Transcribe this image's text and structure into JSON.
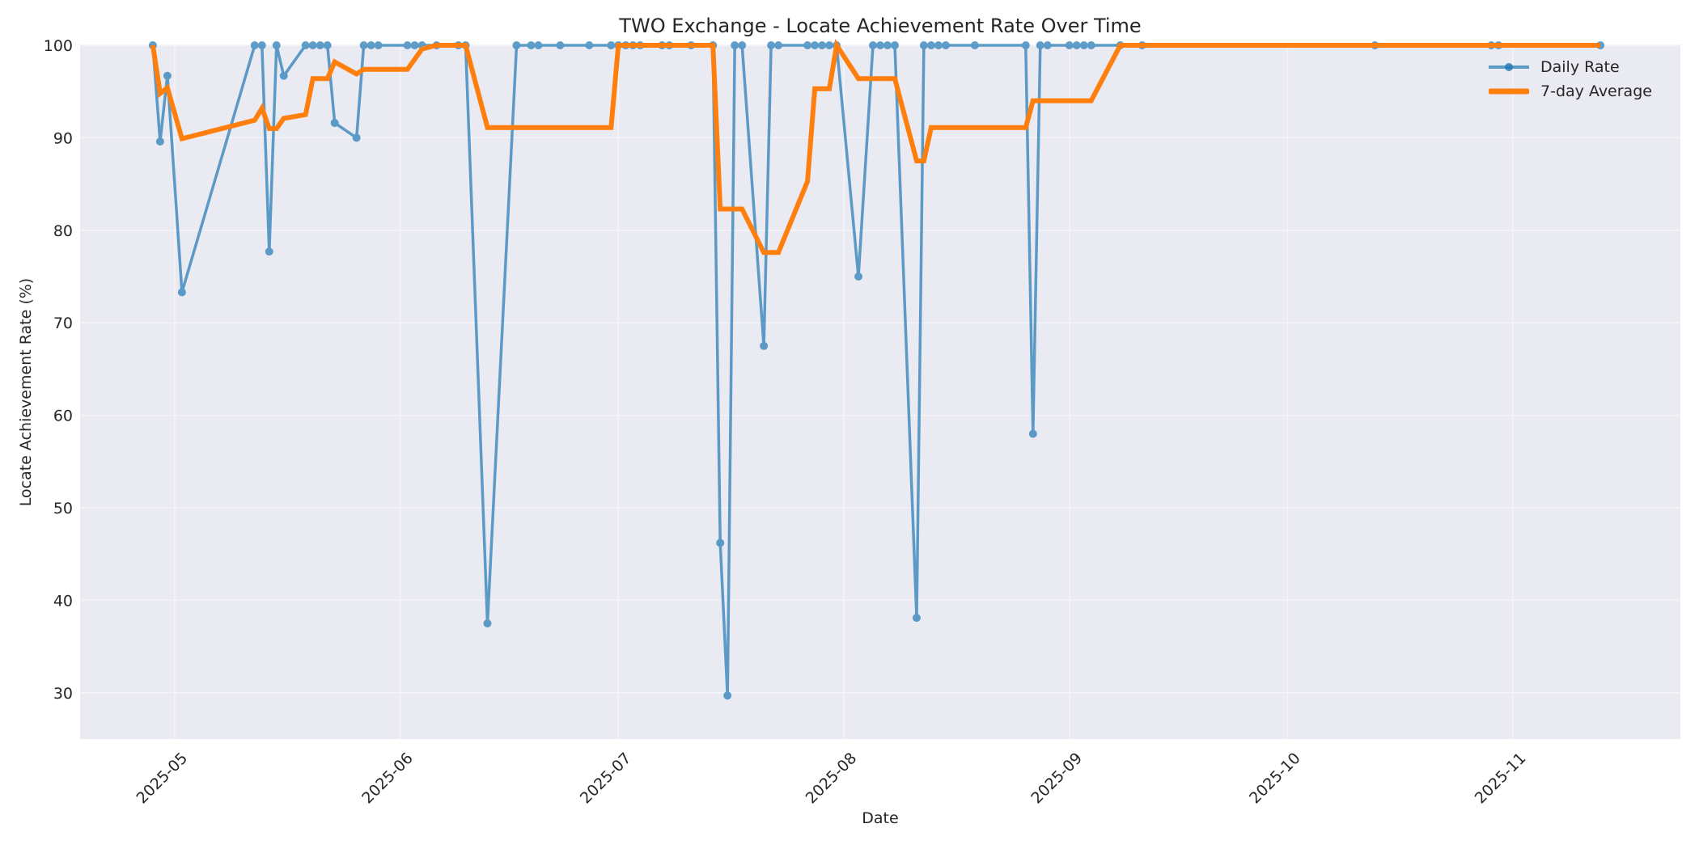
{
  "chart_data": {
    "type": "line",
    "title": "TWO Exchange - Locate Achievement Rate Over Time",
    "xlabel": "Date",
    "ylabel": "Locate Achievement Rate (%)",
    "ylim": [
      25,
      100
    ],
    "xlim": [
      "2025-04-18",
      "2025-11-24"
    ],
    "grid": true,
    "legend_position": "upper right",
    "yticks": [
      30,
      40,
      50,
      60,
      70,
      80,
      90,
      100
    ],
    "xticks": [
      "2025-05",
      "2025-06",
      "2025-07",
      "2025-08",
      "2025-09",
      "2025-10",
      "2025-11"
    ],
    "x": [
      "2025-04-28",
      "2025-04-29",
      "2025-04-30",
      "2025-05-02",
      "2025-05-12",
      "2025-05-13",
      "2025-05-14",
      "2025-05-15",
      "2025-05-16",
      "2025-05-19",
      "2025-05-20",
      "2025-05-21",
      "2025-05-22",
      "2025-05-23",
      "2025-05-26",
      "2025-05-27",
      "2025-05-28",
      "2025-05-29",
      "2025-06-02",
      "2025-06-03",
      "2025-06-04",
      "2025-06-06",
      "2025-06-09",
      "2025-06-10",
      "2025-06-13",
      "2025-06-17",
      "2025-06-19",
      "2025-06-20",
      "2025-06-23",
      "2025-06-27",
      "2025-06-30",
      "2025-07-01",
      "2025-07-02",
      "2025-07-03",
      "2025-07-04",
      "2025-07-07",
      "2025-07-08",
      "2025-07-11",
      "2025-07-14",
      "2025-07-15",
      "2025-07-16",
      "2025-07-17",
      "2025-07-18",
      "2025-07-21",
      "2025-07-22",
      "2025-07-23",
      "2025-07-27",
      "2025-07-28",
      "2025-07-29",
      "2025-07-30",
      "2025-07-31",
      "2025-08-03",
      "2025-08-05",
      "2025-08-06",
      "2025-08-07",
      "2025-08-08",
      "2025-08-11",
      "2025-08-12",
      "2025-08-13",
      "2025-08-14",
      "2025-08-15",
      "2025-08-19",
      "2025-08-26",
      "2025-08-27",
      "2025-08-28",
      "2025-08-29",
      "2025-09-01",
      "2025-09-02",
      "2025-09-03",
      "2025-09-04",
      "2025-09-08",
      "2025-09-11",
      "2025-10-13",
      "2025-10-29",
      "2025-10-30",
      "2025-11-13"
    ],
    "series": [
      {
        "name": "Daily Rate",
        "color": "#1f77b4",
        "values": [
          100,
          89.6,
          96.7,
          73.3,
          100,
          100,
          77.7,
          100,
          96.7,
          100,
          100,
          100,
          100,
          91.6,
          90.0,
          100,
          100,
          100,
          100,
          100,
          100,
          100,
          100,
          100,
          37.5,
          100,
          100,
          100,
          100,
          100,
          100,
          100,
          100,
          100,
          100,
          100,
          100,
          100,
          100,
          46.2,
          29.7,
          100,
          100,
          67.5,
          100,
          100,
          100,
          100,
          100,
          100,
          100,
          75.0,
          100,
          100,
          100,
          100,
          38.1,
          100,
          100,
          100,
          100,
          100,
          100,
          58.0,
          100,
          100,
          100,
          100,
          100,
          100,
          100,
          100,
          100,
          100,
          100,
          100
        ]
      },
      {
        "name": "7-day Average",
        "color": "#ff7f0e",
        "values": [
          100,
          94.8,
          95.4,
          89.9,
          91.9,
          93.2,
          91.0,
          91.0,
          92.1,
          92.5,
          96.4,
          96.4,
          96.4,
          98.2,
          96.9,
          97.4,
          97.4,
          97.4,
          97.4,
          98.5,
          99.6,
          100,
          100,
          100,
          91.1,
          91.1,
          91.1,
          91.1,
          91.1,
          91.1,
          91.1,
          100,
          100,
          100,
          100,
          100,
          100,
          100,
          100,
          82.3,
          82.3,
          82.3,
          82.3,
          77.6,
          77.6,
          77.6,
          85.3,
          95.3,
          95.3,
          95.3,
          100,
          96.4,
          96.4,
          96.4,
          96.4,
          96.4,
          87.5,
          87.5,
          91.1,
          91.1,
          91.1,
          91.1,
          91.1,
          94.0,
          94.0,
          94.0,
          94.0,
          94.0,
          94.0,
          94.0,
          100,
          100,
          100,
          100,
          100,
          100
        ]
      }
    ]
  },
  "legend": {
    "items": [
      {
        "label": "Daily Rate",
        "color": "#1f77b4"
      },
      {
        "label": "7-day Average",
        "color": "#ff7f0e"
      }
    ]
  },
  "style": {
    "plot_bg": "#eaeaf2",
    "grid_color": "#f4f4f8"
  }
}
